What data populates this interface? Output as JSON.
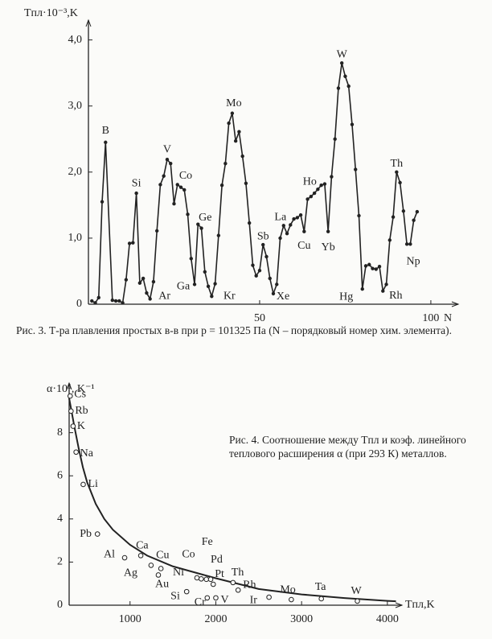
{
  "chart_data": [
    {
      "type": "line",
      "y_label": "Tпл·10⁻³,K",
      "x_label": "N",
      "xlim": [
        0,
        108
      ],
      "ylim": [
        0,
        4.3
      ],
      "xticks": [
        50,
        100
      ],
      "yticks": [
        0,
        {
          "value": 1,
          "label": "1,0"
        },
        {
          "value": 2,
          "label": "2,0"
        },
        {
          "value": 3,
          "label": "3,0"
        },
        {
          "value": 4,
          "label": "4,0"
        }
      ],
      "color": "#222",
      "x": [
        1,
        2,
        3,
        4,
        5,
        7,
        8,
        9,
        10,
        11,
        12,
        13,
        14,
        15,
        16,
        17,
        18,
        19,
        20,
        21,
        22,
        23,
        24,
        25,
        26,
        27,
        28,
        29,
        30,
        31,
        32,
        33,
        34,
        35,
        36,
        37,
        38,
        39,
        40,
        41,
        42,
        43,
        44,
        45,
        46,
        47,
        48,
        49,
        50,
        51,
        52,
        53,
        54,
        55,
        56,
        57,
        58,
        59,
        60,
        61,
        62,
        63,
        64,
        65,
        66,
        67,
        68,
        69,
        70,
        71,
        72,
        73,
        74,
        75,
        76,
        77,
        78,
        79,
        80,
        81,
        82,
        83,
        84,
        85,
        86,
        87,
        88,
        89,
        90,
        91,
        92,
        93,
        94,
        95,
        96
      ],
      "values": [
        0.05,
        0.02,
        0.1,
        1.55,
        2.45,
        0.06,
        0.05,
        0.05,
        0.02,
        0.37,
        0.92,
        0.93,
        1.68,
        0.32,
        0.39,
        0.17,
        0.08,
        0.34,
        1.11,
        1.81,
        1.94,
        2.19,
        2.13,
        1.52,
        1.81,
        1.77,
        1.73,
        1.36,
        0.69,
        0.3,
        1.21,
        1.15,
        0.49,
        0.27,
        0.12,
        0.31,
        1.04,
        1.8,
        2.13,
        2.74,
        2.89,
        2.47,
        2.61,
        2.24,
        1.83,
        1.23,
        0.59,
        0.43,
        0.51,
        0.9,
        0.72,
        0.39,
        0.16,
        0.3,
        1.0,
        1.19,
        1.07,
        1.2,
        1.29,
        1.31,
        1.35,
        1.1,
        1.59,
        1.63,
        1.68,
        1.74,
        1.8,
        1.82,
        1.1,
        1.93,
        2.5,
        3.27,
        3.65,
        3.45,
        3.3,
        2.72,
        2.04,
        1.34,
        0.23,
        0.58,
        0.6,
        0.54,
        0.53,
        0.57,
        0.2,
        0.3,
        0.97,
        1.32,
        2.0,
        1.84,
        1.41,
        0.91,
        0.91,
        1.27,
        1.4
      ],
      "annotations": [
        {
          "text": "B",
          "x": 5,
          "y": 2.45
        },
        {
          "text": "Si",
          "x": 14,
          "y": 1.68
        },
        {
          "text": "V",
          "x": 23,
          "y": 2.19
        },
        {
          "text": "Co",
          "x": 27,
          "y": 1.77
        },
        {
          "text": "Ge",
          "x": 32,
          "y": 1.21
        },
        {
          "text": "Ar",
          "x": 18,
          "y": 0.08
        },
        {
          "text": "Ga",
          "x": 31,
          "y": 0.3
        },
        {
          "text": "Kr",
          "x": 36,
          "y": 0.12
        },
        {
          "text": "Mo",
          "x": 42,
          "y": 2.89
        },
        {
          "text": "Sb",
          "x": 51,
          "y": 0.9
        },
        {
          "text": "Xe",
          "x": 54,
          "y": 0.16
        },
        {
          "text": "La",
          "x": 57,
          "y": 1.19
        },
        {
          "text": "Cu",
          "x": 63,
          "y": 1.1
        },
        {
          "text": "Ho",
          "x": 67,
          "y": 1.74
        },
        {
          "text": "Yb",
          "x": 70,
          "y": 1.1
        },
        {
          "text": "W",
          "x": 74,
          "y": 3.65
        },
        {
          "text": "Hg",
          "x": 80,
          "y": 0.23
        },
        {
          "text": "Rh",
          "x": 86,
          "y": 0.2
        },
        {
          "text": "Th",
          "x": 90,
          "y": 2.0
        },
        {
          "text": "Np",
          "x": 93,
          "y": 0.91
        }
      ],
      "caption": "Рис. 3. Т-ра плавления простых в-в при p = 101325 Па (N – порядковый номер хим. элемента)."
    },
    {
      "type": "scatter",
      "y_label": "α·10⁵, K⁻¹",
      "x_label": "Tпл,K",
      "xlim": [
        290,
        4170
      ],
      "ylim": [
        0,
        10.3
      ],
      "xticks": [
        1000,
        2000,
        3000,
        4000
      ],
      "yticks": [
        0,
        2,
        4,
        6,
        8
      ],
      "color": "#222",
      "points": {
        "labels": [
          "Cs",
          "Rb",
          "K",
          "Na",
          "Li",
          "Pb",
          "Al",
          "Ca",
          "Ag",
          "Cu",
          "Au",
          "Ni",
          "Co",
          "Fe",
          "Pd",
          "Pt",
          "Th",
          "Rh",
          "Si",
          "Cr",
          "V",
          "Ir",
          "Mo",
          "Ta",
          "W"
        ],
        "x": [
          302,
          312,
          336,
          371,
          454,
          620,
          937,
          1125,
          1245,
          1360,
          1330,
          1780,
          1830,
          1890,
          1940,
          1970,
          2200,
          2260,
          1660,
          1900,
          2000,
          2620,
          2880,
          3230,
          3650
        ],
        "values": [
          9.7,
          9.0,
          8.3,
          7.1,
          5.6,
          3.3,
          2.2,
          2.3,
          1.85,
          1.7,
          1.4,
          1.27,
          1.22,
          1.2,
          1.2,
          0.97,
          1.05,
          0.7,
          0.63,
          0.34,
          0.34,
          0.37,
          0.26,
          0.3,
          0.19
        ]
      },
      "curve": {
        "x": [
          290,
          350,
          400,
          450,
          500,
          600,
          700,
          800,
          1000,
          1200,
          1500,
          2000,
          2500,
          3000,
          3500,
          4000,
          4100
        ],
        "values": [
          9.6,
          8.3,
          7.3,
          6.4,
          5.7,
          4.7,
          4.0,
          3.5,
          2.8,
          2.3,
          1.8,
          1.25,
          0.75,
          0.5,
          0.33,
          0.2,
          0.18
        ]
      },
      "caption": "Рис. 4. Соотношение между Tпл и коэф. линейного теплового расширения α (при 293 К) металлов."
    }
  ]
}
